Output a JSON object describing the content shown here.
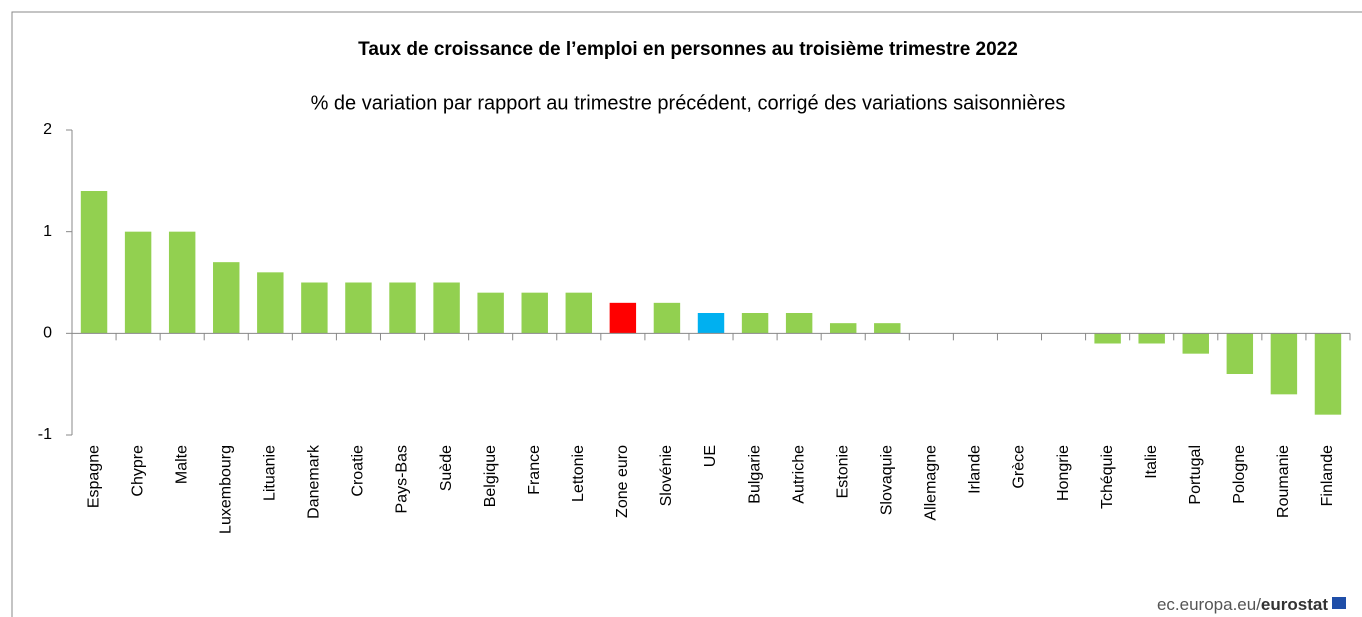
{
  "chart_data": {
    "type": "bar",
    "title": "Taux de croissance de l’emploi en personnes au troisième trimestre 2022",
    "subtitle": "% de variation par rapport au trimestre précédent, corrigé des variations saisonnières",
    "categories": [
      "Espagne",
      "Chypre",
      "Malte",
      "Luxembourg",
      "Lituanie",
      "Danemark",
      "Croatie",
      "Pays-Bas",
      "Suède",
      "Belgique",
      "France",
      "Lettonie",
      "Zone euro",
      "Slovénie",
      "UE",
      "Bulgarie",
      "Autriche",
      "Estonie",
      "Slovaquie",
      "Allemagne",
      "Irlande",
      "Grèce",
      "Hongrie",
      "Tchéquie",
      "Italie",
      "Portugal",
      "Pologne",
      "Roumanie",
      "Finlande"
    ],
    "values": [
      1.4,
      1.0,
      1.0,
      0.7,
      0.6,
      0.5,
      0.5,
      0.5,
      0.5,
      0.4,
      0.4,
      0.4,
      0.3,
      0.3,
      0.2,
      0.2,
      0.2,
      0.1,
      0.1,
      0,
      0,
      0,
      0,
      -0.1,
      -0.1,
      -0.2,
      -0.4,
      -0.6,
      -0.8
    ],
    "colors": [
      "#92d050",
      "#92d050",
      "#92d050",
      "#92d050",
      "#92d050",
      "#92d050",
      "#92d050",
      "#92d050",
      "#92d050",
      "#92d050",
      "#92d050",
      "#92d050",
      "#ff0000",
      "#92d050",
      "#00b0f0",
      "#92d050",
      "#92d050",
      "#92d050",
      "#92d050",
      "#92d050",
      "#92d050",
      "#92d050",
      "#92d050",
      "#92d050",
      "#92d050",
      "#92d050",
      "#92d050",
      "#92d050",
      "#92d050"
    ],
    "ylim": [
      -1,
      2
    ],
    "yticks": [
      -1,
      0,
      1,
      2
    ],
    "grid": false
  },
  "footer": {
    "site": "ec.europa.eu/",
    "brand": "eurostat"
  }
}
